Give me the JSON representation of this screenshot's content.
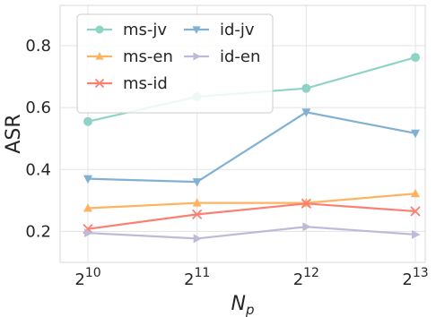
{
  "chart_data": {
    "type": "line",
    "xlabel": "N",
    "xlabel_sub": "p",
    "ylabel": "ASR",
    "x_ticks": [
      {
        "base": "2",
        "exp": "10"
      },
      {
        "base": "2",
        "exp": "11"
      },
      {
        "base": "2",
        "exp": "12"
      },
      {
        "base": "2",
        "exp": "13"
      }
    ],
    "x": [
      1024,
      2048,
      4096,
      8192
    ],
    "x_scale": "log2",
    "y_ticks": [
      "0.2",
      "0.4",
      "0.6",
      "0.8"
    ],
    "ylim": [
      0.1,
      0.93
    ],
    "grid": true,
    "legend_position": "upper-left",
    "series": [
      {
        "name": "ms-jv",
        "color": "#8ed3c7",
        "marker": "circle",
        "values": [
          0.555,
          0.635,
          0.662,
          0.762
        ]
      },
      {
        "name": "ms-en",
        "color": "#fdb462",
        "marker": "triangle-up",
        "values": [
          0.275,
          0.292,
          0.292,
          0.322
        ]
      },
      {
        "name": "ms-id",
        "color": "#fb8072",
        "marker": "x",
        "values": [
          0.208,
          0.255,
          0.29,
          0.265
        ]
      },
      {
        "name": "id-jv",
        "color": "#80b1d3",
        "marker": "triangle-down",
        "values": [
          0.37,
          0.36,
          0.585,
          0.517
        ]
      },
      {
        "name": "id-en",
        "color": "#bebada",
        "marker": "triangle-right",
        "values": [
          0.195,
          0.177,
          0.215,
          0.19
        ]
      }
    ]
  }
}
